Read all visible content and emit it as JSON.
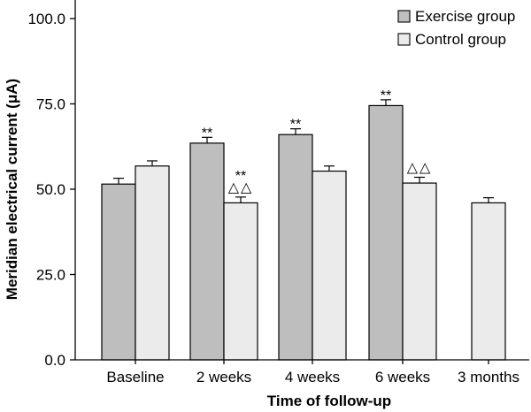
{
  "chart_data": {
    "type": "bar",
    "xlabel": "Time of follow-up",
    "ylabel": "Meridian electrical current (μA)",
    "ylim": [
      0,
      100
    ],
    "yticks": [
      "0.0",
      "25.0",
      "50.0",
      "75.0",
      "100.0"
    ],
    "grid": false,
    "legend_position": "top-right",
    "categories": [
      "Baseline",
      "2 weeks",
      "4 weeks",
      "6 weeks",
      "3 months"
    ],
    "series": [
      {
        "name": "Exercise group",
        "color": "#bebebe",
        "values": [
          51.5,
          63.5,
          66.0,
          74.5,
          null
        ],
        "errors": [
          1.7,
          1.7,
          1.7,
          1.7,
          null
        ],
        "annotations": [
          "",
          "**",
          "**",
          "**",
          ""
        ]
      },
      {
        "name": "Control group",
        "color": "#ebebeb",
        "values": [
          56.8,
          46.0,
          55.3,
          51.8,
          46.0
        ],
        "errors": [
          1.5,
          1.7,
          1.5,
          1.7,
          1.5
        ],
        "annotations": [
          "",
          "**\n△△",
          "",
          "△△",
          ""
        ]
      }
    ]
  }
}
